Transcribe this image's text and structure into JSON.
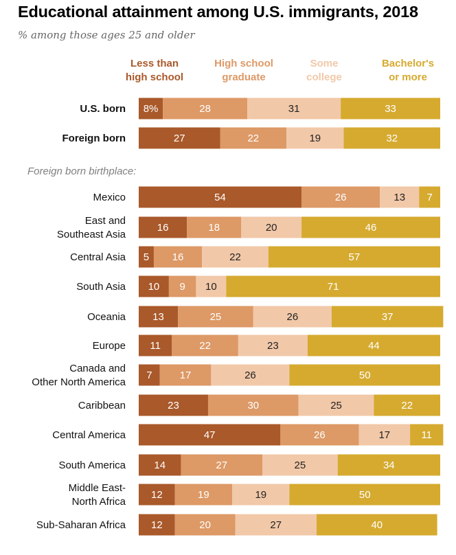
{
  "title": "Educational attainment among U.S. immigrants, 2018",
  "subtitle": "% among those ages 25 and older",
  "section_label": "Foreign born birthplace:",
  "colors": {
    "less_than_hs": "#a9592a",
    "hs_grad": "#dd9966",
    "some_college": "#f1c8a8",
    "bachelors": "#d5aa2f",
    "label_light": "#ffffff",
    "label_dark": "#222222"
  },
  "chart_data": {
    "type": "bar",
    "orientation": "horizontal",
    "stacked": true,
    "unit": "%",
    "xlim": [
      0,
      100
    ],
    "series": [
      {
        "name": "Less than high school",
        "legend_lines": [
          "Less than",
          "high school"
        ],
        "color": "#a9592a",
        "values": [
          8,
          27,
          54,
          16,
          5,
          10,
          13,
          11,
          7,
          23,
          47,
          14,
          12,
          12
        ]
      },
      {
        "name": "High school graduate",
        "legend_lines": [
          "High school",
          "graduate"
        ],
        "color": "#dd9966",
        "values": [
          28,
          22,
          26,
          18,
          16,
          9,
          25,
          22,
          17,
          30,
          26,
          27,
          19,
          20
        ]
      },
      {
        "name": "Some college",
        "legend_lines": [
          "Some",
          "college"
        ],
        "color": "#f1c8a8",
        "values": [
          31,
          19,
          13,
          20,
          22,
          10,
          26,
          23,
          26,
          25,
          17,
          25,
          19,
          27
        ]
      },
      {
        "name": "Bachelor's or more",
        "legend_lines": [
          "Bachelor's",
          "or more"
        ],
        "color": "#d5aa2f",
        "values": [
          33,
          32,
          7,
          46,
          57,
          71,
          37,
          44,
          50,
          22,
          11,
          34,
          50,
          40
        ]
      }
    ],
    "categories": [
      {
        "label": [
          "U.S. born"
        ],
        "bold": true,
        "first_value_label": "8%"
      },
      {
        "label": [
          "Foreign born"
        ],
        "bold": true
      },
      {
        "label": [
          "Mexico"
        ]
      },
      {
        "label": [
          "East and",
          "Southeast Asia"
        ]
      },
      {
        "label": [
          "Central Asia"
        ]
      },
      {
        "label": [
          "South Asia"
        ]
      },
      {
        "label": [
          "Oceania"
        ]
      },
      {
        "label": [
          "Europe"
        ]
      },
      {
        "label": [
          "Canada and",
          "Other North America"
        ]
      },
      {
        "label": [
          "Caribbean"
        ]
      },
      {
        "label": [
          "Central America"
        ]
      },
      {
        "label": [
          "South America"
        ]
      },
      {
        "label": [
          "Middle East-",
          "North Africa"
        ]
      },
      {
        "label": [
          "Sub-Saharan Africa"
        ]
      }
    ]
  }
}
